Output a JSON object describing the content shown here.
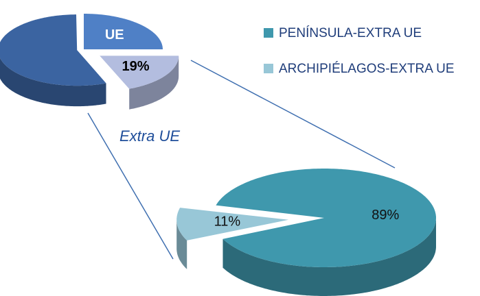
{
  "chart_data": [
    {
      "type": "pie3d",
      "categories": [
        "UE",
        null,
        null
      ],
      "values": [
        25,
        19,
        56
      ],
      "value_labels": [
        null,
        "19%",
        null
      ],
      "colors": [
        "#4f80c6",
        "#b3bddf",
        "#3b64a1"
      ]
    },
    {
      "type": "pie3d",
      "categories": [
        "PENÍNSULA-EXTRA UE",
        "ARCHIPIÉLAGOS-EXTRA UE"
      ],
      "values": [
        89,
        11
      ],
      "value_labels": [
        "89%",
        "11%"
      ],
      "colors": [
        "#3f98ad",
        "#98c7d7"
      ],
      "legend": "top-right",
      "annotations": [
        "Extra UE"
      ]
    }
  ]
}
